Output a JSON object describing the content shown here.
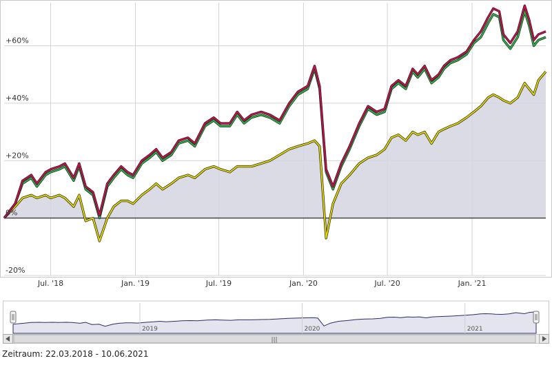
{
  "chart_data": {
    "type": "line",
    "y_unit": "%",
    "ylim": [
      -20,
      75
    ],
    "y_ticks": [
      {
        "value": 60,
        "label": "+60%"
      },
      {
        "value": 40,
        "label": "+40%"
      },
      {
        "value": 20,
        "label": "+20%"
      },
      {
        "value": 0,
        "label": "0%"
      },
      {
        "value": -20,
        "label": "-20%"
      }
    ],
    "xlim": [
      "2018-03-22",
      "2021-06-10"
    ],
    "x_ticks": [
      {
        "date": "2018-07-01",
        "label": "Jul. '18"
      },
      {
        "date": "2019-01-01",
        "label": "Jan. '19"
      },
      {
        "date": "2019-07-01",
        "label": "Jul. '19"
      },
      {
        "date": "2020-01-01",
        "label": "Jan. '20"
      },
      {
        "date": "2020-07-01",
        "label": "Jul. '20"
      },
      {
        "date": "2021-01-01",
        "label": "Jan. '21"
      }
    ],
    "grid": true,
    "legend": "none",
    "x": [
      "2018-03-22",
      "2018-04-15",
      "2018-05-01",
      "2018-05-20",
      "2018-06-01",
      "2018-06-20",
      "2018-07-01",
      "2018-07-20",
      "2018-08-01",
      "2018-08-20",
      "2018-09-01",
      "2018-09-15",
      "2018-10-01",
      "2018-10-15",
      "2018-11-01",
      "2018-11-15",
      "2018-12-01",
      "2018-12-15",
      "2018-12-27",
      "2019-01-15",
      "2019-02-01",
      "2019-02-15",
      "2019-03-01",
      "2019-03-20",
      "2019-04-05",
      "2019-04-25",
      "2019-05-10",
      "2019-06-01",
      "2019-06-20",
      "2019-07-05",
      "2019-07-25",
      "2019-08-10",
      "2019-08-25",
      "2019-09-10",
      "2019-10-01",
      "2019-10-20",
      "2019-11-10",
      "2019-12-01",
      "2019-12-20",
      "2020-01-10",
      "2020-01-25",
      "2020-02-05",
      "2020-02-19",
      "2020-03-05",
      "2020-03-23",
      "2020-04-10",
      "2020-05-01",
      "2020-05-20",
      "2020-06-08",
      "2020-06-25",
      "2020-07-10",
      "2020-07-25",
      "2020-08-10",
      "2020-08-25",
      "2020-09-05",
      "2020-09-20",
      "2020-10-05",
      "2020-10-20",
      "2020-11-01",
      "2020-11-15",
      "2020-12-01",
      "2020-12-20",
      "2021-01-05",
      "2021-01-20",
      "2021-02-05",
      "2021-02-16",
      "2021-03-01",
      "2021-03-10",
      "2021-03-25",
      "2021-04-10",
      "2021-04-25",
      "2021-05-05",
      "2021-05-15",
      "2021-05-25",
      "2021-06-10"
    ],
    "series": [
      {
        "color": "#c80f4c",
        "values": [
          0,
          5,
          13,
          15,
          12,
          16,
          17,
          18,
          19,
          14,
          19,
          11,
          9,
          1,
          12,
          15,
          18,
          16,
          15,
          20,
          22,
          24,
          21,
          23,
          27,
          28,
          26,
          33,
          35,
          33,
          33,
          37,
          34,
          36,
          37,
          36,
          34,
          40,
          44,
          46,
          53,
          46,
          17,
          11,
          19,
          25,
          33,
          39,
          37,
          38,
          46,
          48,
          46,
          52,
          50,
          53,
          48,
          50,
          53,
          55,
          56,
          58,
          62,
          65,
          70,
          73,
          72,
          64,
          61,
          65,
          74,
          69,
          62,
          64,
          65
        ]
      },
      {
        "color": "#2bb046",
        "values": [
          0,
          5,
          12,
          14,
          11,
          15,
          16,
          17,
          18,
          13,
          18,
          10,
          8,
          0,
          11,
          14,
          17,
          15,
          14,
          19,
          21,
          23,
          20,
          22,
          26,
          27,
          25,
          32,
          34,
          32,
          32,
          36,
          33,
          35,
          36,
          35,
          33,
          39,
          43,
          45,
          52,
          45,
          16,
          10,
          18,
          24,
          32,
          38,
          36,
          37,
          45,
          47,
          45,
          51,
          49,
          52,
          47,
          49,
          52,
          54,
          55,
          57,
          61,
          63,
          68,
          71,
          70,
          62,
          59,
          63,
          72,
          67,
          60,
          62,
          63
        ]
      },
      {
        "color": "#e0d400",
        "values": [
          0,
          4,
          7,
          8,
          7,
          8,
          7,
          8,
          7,
          4,
          8,
          -1,
          0,
          -8,
          0,
          4,
          6,
          6,
          5,
          8,
          10,
          12,
          10,
          12,
          14,
          15,
          14,
          17,
          18,
          17,
          16,
          18,
          18,
          18,
          19,
          20,
          22,
          24,
          25,
          26,
          27,
          25,
          -7,
          5,
          12,
          15,
          19,
          21,
          22,
          24,
          28,
          29,
          27,
          30,
          29,
          30,
          26,
          30,
          31,
          32,
          33,
          35,
          37,
          39,
          42,
          43,
          42,
          41,
          40,
          42,
          47,
          45,
          43,
          48,
          51
        ]
      }
    ],
    "navigator": {
      "tick_labels": [
        "2019",
        "2020",
        "2021"
      ],
      "scroll_grip": "|||"
    }
  },
  "footer": {
    "range_label": "Zeitraum: 22.03.2018 - 10.06.2021"
  }
}
